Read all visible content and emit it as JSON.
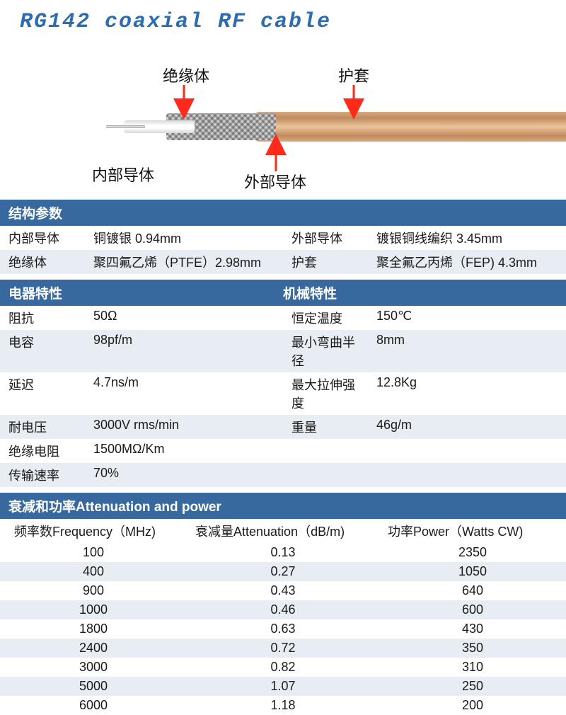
{
  "colors": {
    "accent": "#2b6cb3",
    "header_bg": "#37699f",
    "header_text": "#ffffff",
    "row_alt_bg": "#e8edf3",
    "text": "#1a1a1a",
    "arrow": "#ff2a1a",
    "jacket": "#d8a97e",
    "braid_light": "#e8e8e8",
    "braid_dark": "#b0b0b0",
    "insulation": "#ffffff",
    "conductor": "#c0c0c0"
  },
  "title": "RG142 coaxial RF cable",
  "diagram": {
    "labels": {
      "insulation": "绝缘体",
      "jacket": "护套",
      "inner_conductor": "内部导体",
      "outer_conductor": "外部导体"
    }
  },
  "sections": {
    "structure": {
      "header": "结构参数",
      "rows": [
        {
          "l_label": "内部导体",
          "l_value": "铜镀银 0.94mm",
          "r_label": "外部导体",
          "r_value": "镀银铜线编织 3.45mm"
        },
        {
          "l_label": "绝缘体",
          "l_value": "聚四氟乙烯（PTFE）2.98mm",
          "r_label": "护套",
          "r_value": "聚全氟乙丙烯（FEP) 4.3mm"
        }
      ]
    },
    "elec_mech": {
      "header_left": "电器特性",
      "header_right": "机械特性",
      "rows": [
        {
          "l_label": "阻抗",
          "l_value": "50Ω",
          "r_label": "恒定温度",
          "r_value": "150℃"
        },
        {
          "l_label": "电容",
          "l_value": "98pf/m",
          "r_label": "最小弯曲半径",
          "r_value": "8mm"
        },
        {
          "l_label": "延迟",
          "l_value": "4.7ns/m",
          "r_label": "最大拉伸强度",
          "r_value": "12.8Kg"
        },
        {
          "l_label": "耐电压",
          "l_value": "3000V rms/min",
          "r_label": "重量",
          "r_value": "46g/m"
        },
        {
          "l_label": "绝缘电阻",
          "l_value": "1500MΩ/Km",
          "r_label": "",
          "r_value": ""
        },
        {
          "l_label": "传输速率",
          "l_value": "70%",
          "r_label": "",
          "r_value": ""
        }
      ]
    },
    "attenuation": {
      "header": "衰减和功率Attenuation and power",
      "columns": {
        "freq": "频率数Frequency（MHz)",
        "atten": "衰减量Attenuation（dB/m)",
        "power": "功率Power（Watts CW)"
      },
      "rows": [
        {
          "freq": "100",
          "atten": "0.13",
          "power": "2350"
        },
        {
          "freq": "400",
          "atten": "0.27",
          "power": "1050"
        },
        {
          "freq": "900",
          "atten": "0.43",
          "power": "640"
        },
        {
          "freq": "1000",
          "atten": "0.46",
          "power": "600"
        },
        {
          "freq": "1800",
          "atten": "0.63",
          "power": "430"
        },
        {
          "freq": "2400",
          "atten": "0.72",
          "power": "350"
        },
        {
          "freq": "3000",
          "atten": "0.82",
          "power": "310"
        },
        {
          "freq": "5000",
          "atten": "1.07",
          "power": "250"
        },
        {
          "freq": "6000",
          "atten": "1.18",
          "power": "200"
        }
      ]
    }
  }
}
